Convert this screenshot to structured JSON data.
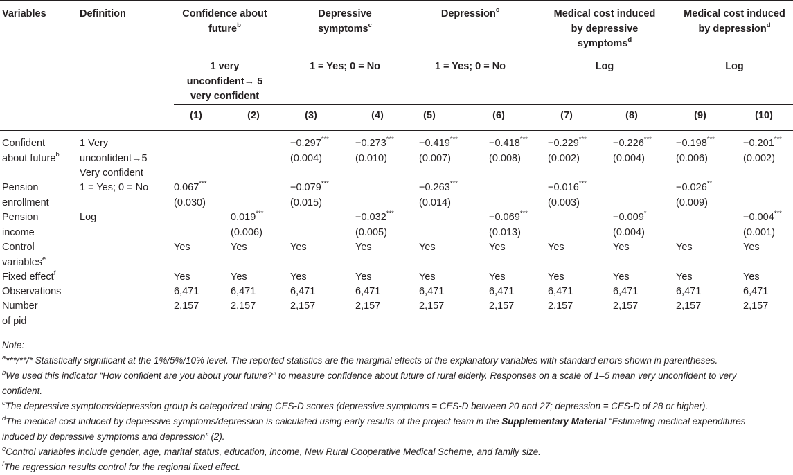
{
  "header": {
    "variables": "Variables",
    "definition": "Definition",
    "groups": [
      {
        "title_lines": [
          "Confidence about",
          "future"
        ],
        "sup": "b",
        "scale_lines": [
          "1 very",
          "unconfident→ 5",
          "very confident"
        ]
      },
      {
        "title_lines": [
          "Depressive",
          "symptoms"
        ],
        "sup": "c",
        "scale_lines": [
          "1 = Yes; 0 = No"
        ]
      },
      {
        "title_lines": [
          "Depression"
        ],
        "sup": "c",
        "scale_lines": [
          "1 = Yes; 0 = No"
        ]
      },
      {
        "title_lines": [
          "Medical cost induced",
          "by depressive",
          "symptoms"
        ],
        "sup": "d",
        "scale_lines": [
          "Log"
        ]
      },
      {
        "title_lines": [
          "Medical cost induced",
          "by depression"
        ],
        "sup": "d",
        "scale_lines": [
          "Log"
        ]
      }
    ],
    "columns": [
      "(1)",
      "(2)",
      "(3)",
      "(4)",
      "(5)",
      "(6)",
      "(7)",
      "(8)",
      "(9)",
      "(10)"
    ]
  },
  "rows": [
    {
      "var_lines": [
        "Confident",
        "about future"
      ],
      "var_sup": "b",
      "def_lines": [
        "1 Very",
        "unconfident→5",
        "Very confident"
      ],
      "cells": [
        null,
        null,
        {
          "coef": "−0.297",
          "stars": "***",
          "se": "(0.004)"
        },
        {
          "coef": "−0.273",
          "stars": "***",
          "se": "(0.010)"
        },
        {
          "coef": "−0.419",
          "stars": "***",
          "se": "(0.007)"
        },
        {
          "coef": "−0.418",
          "stars": "***",
          "se": "(0.008)"
        },
        {
          "coef": "−0.229",
          "stars": "***",
          "se": "(0.002)"
        },
        {
          "coef": "−0.226",
          "stars": "***",
          "se": "(0.004)"
        },
        {
          "coef": "−0.198",
          "stars": "***",
          "se": "(0.006)"
        },
        {
          "coef": "−0.201",
          "stars": "***",
          "se": "(0.002)"
        }
      ]
    },
    {
      "var_lines": [
        "Pension",
        "enrollment"
      ],
      "var_sup": "",
      "def_lines": [
        "1 = Yes; 0 = No"
      ],
      "cells": [
        {
          "coef": "0.067",
          "stars": "***",
          "se": "(0.030)"
        },
        null,
        {
          "coef": "−0.079",
          "stars": "***",
          "se": "(0.015)"
        },
        null,
        {
          "coef": "−0.263",
          "stars": "***",
          "se": "(0.014)"
        },
        null,
        {
          "coef": "−0.016",
          "stars": "***",
          "se": "(0.003)"
        },
        null,
        {
          "coef": "−0.026",
          "stars": "**",
          "se": "(0.009)"
        },
        null
      ]
    },
    {
      "var_lines": [
        "Pension",
        "income"
      ],
      "var_sup": "",
      "def_lines": [
        "Log"
      ],
      "cells": [
        null,
        {
          "coef": "0.019",
          "stars": "***",
          "se": "(0.006)"
        },
        null,
        {
          "coef": "−0.032",
          "stars": "***",
          "se": "(0.005)"
        },
        null,
        {
          "coef": "−0.069",
          "stars": "***",
          "se": "(0.013)"
        },
        null,
        {
          "coef": "−0.009",
          "stars": "*",
          "se": "(0.004)"
        },
        null,
        {
          "coef": "−0.004",
          "stars": "***",
          "se": "(0.001)"
        }
      ]
    }
  ],
  "simple_rows": [
    {
      "var_lines": [
        "Control",
        "variables"
      ],
      "var_sup": "e",
      "values": [
        "Yes",
        "Yes",
        "Yes",
        "Yes",
        "Yes",
        "Yes",
        "Yes",
        "Yes",
        "Yes",
        "Yes"
      ]
    },
    {
      "var_lines": [
        "Fixed effect"
      ],
      "var_sup": "f",
      "values": [
        "Yes",
        "Yes",
        "Yes",
        "Yes",
        "Yes",
        "Yes",
        "Yes",
        "Yes",
        "Yes",
        "Yes"
      ]
    },
    {
      "var_lines": [
        "Observations"
      ],
      "var_sup": "",
      "values": [
        "6,471",
        "6,471",
        "6,471",
        "6,471",
        "6,471",
        "6,471",
        "6,471",
        "6,471",
        "6,471",
        "6,471"
      ]
    },
    {
      "var_lines": [
        "Number",
        "of pid"
      ],
      "var_sup": "",
      "values": [
        "2,157",
        "2,157",
        "2,157",
        "2,157",
        "2,157",
        "2,157",
        "2,157",
        "2,157",
        "2,157",
        "2,157"
      ]
    }
  ],
  "notes": {
    "title": "Note:",
    "a": {
      "sup": "a",
      "text": "***/**/* Statistically significant at the 1%/5%/10% level. The reported statistics are the marginal effects of the explanatory variables with standard errors shown in parentheses."
    },
    "b": {
      "sup": "b",
      "line1": "We used this indicator “How confident are you about your future?” to measure confidence about future of rural elderly. Responses on a scale of 1–5 mean very unconfident to very",
      "line2": "confident."
    },
    "c": {
      "sup": "c",
      "text": "The depressive symptoms/depression group is categorized using CES-D scores (depressive symptoms = CES-D between 20 and 27; depression = CES-D of 28 or higher)."
    },
    "d": {
      "sup": "d",
      "pre": "The medical cost induced by depressive symptoms/depression is calculated using early results of the project team in the ",
      "bold": "Supplementary Material",
      "post": " “Estimating medical expenditures",
      "line2": "induced by depressive symptoms and depression” (2)."
    },
    "e": {
      "sup": "e",
      "text": "Control variables include gender, age, marital status, education, income, New Rural Cooperative Medical Scheme, and family size."
    },
    "f": {
      "sup": "f",
      "text": "The regression results control for the regional fixed effect."
    }
  }
}
